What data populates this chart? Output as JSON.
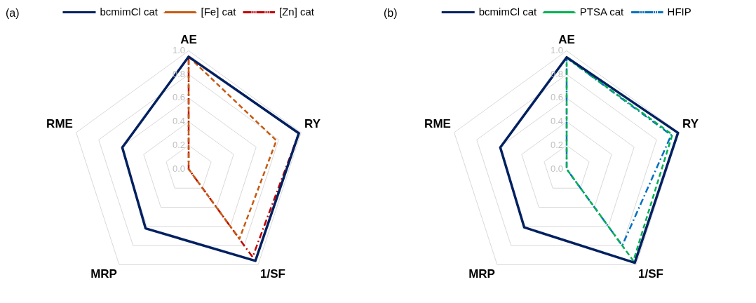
{
  "chart_data": [
    {
      "type": "radar",
      "title": "(a)",
      "categories": [
        "AE",
        "RY",
        "1/SF",
        "MRP",
        "RME"
      ],
      "ylim": [
        0,
        1
      ],
      "yticks": [
        {
          "value": 0,
          "label": "0.0"
        },
        {
          "value": 0.2,
          "label": "0.2"
        },
        {
          "value": 0.4,
          "label": "0.4"
        },
        {
          "value": 0.6,
          "label": "0.6"
        },
        {
          "value": 0.8,
          "label": "0.8"
        },
        {
          "value": 1,
          "label": "1.0"
        }
      ],
      "grid": true,
      "legend": "top",
      "marker": "none",
      "series": [
        {
          "name": "bcmimCl cat",
          "color": "#002060",
          "line_style": "solid",
          "values": [
            0.95,
            0.98,
            0.96,
            0.62,
            0.59
          ]
        },
        {
          "name": "[Fe] cat",
          "color": "#c55a11",
          "line_style": "dashed",
          "values": [
            0.95,
            0.78,
            0.73,
            0,
            0
          ]
        },
        {
          "name": "[Zn] cat",
          "color": "#c00000",
          "line_style": "dashdot",
          "values": [
            0.95,
            0.98,
            0.92,
            0,
            0
          ]
        }
      ]
    },
    {
      "type": "radar",
      "title": "(b)",
      "categories": [
        "AE",
        "RY",
        "1/SF",
        "MRP",
        "RME"
      ],
      "ylim": [
        0,
        1
      ],
      "yticks": [
        {
          "value": 0,
          "label": "0.0"
        },
        {
          "value": 0.2,
          "label": "0.2"
        },
        {
          "value": 0.4,
          "label": "0.4"
        },
        {
          "value": 0.6,
          "label": "0.6"
        },
        {
          "value": 0.8,
          "label": "0.8"
        },
        {
          "value": 1,
          "label": "1.0"
        }
      ],
      "grid": true,
      "legend": "top",
      "marker": "none",
      "series": [
        {
          "name": "bcmimCl cat",
          "color": "#002060",
          "line_style": "solid",
          "values": [
            0.945,
            0.99,
            0.98,
            0.61,
            0.59
          ]
        },
        {
          "name": "PTSA cat",
          "color": "#00b050",
          "line_style": "dashed",
          "values": [
            0.94,
            0.94,
            0.96,
            0,
            0
          ]
        },
        {
          "name": "HFIP",
          "color": "#0070c0",
          "line_style": "dashdot",
          "values": [
            0.94,
            0.93,
            0.8,
            0,
            0
          ]
        }
      ]
    }
  ]
}
